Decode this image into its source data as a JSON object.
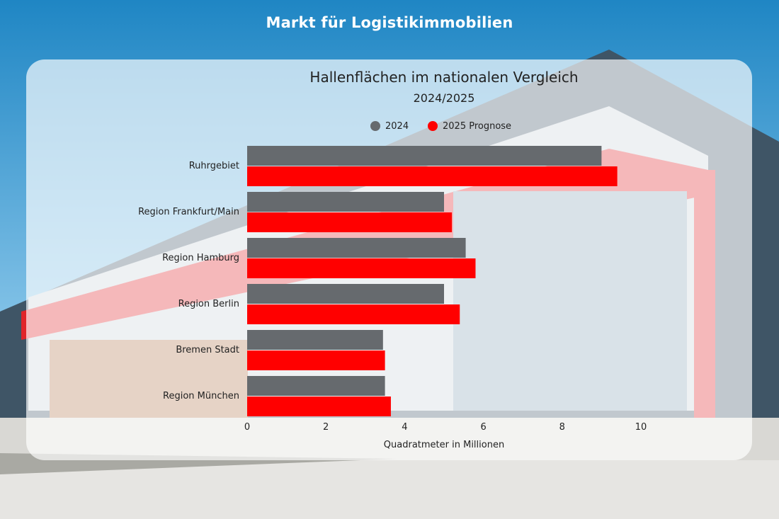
{
  "banner": {
    "title": "Markt für Logistikimmobilien"
  },
  "colors": {
    "series_2024": "#666a6e",
    "series_2025": "#ff0000"
  },
  "chart_data": {
    "type": "bar",
    "orientation": "horizontal",
    "title": "Hallenflächen im nationalen Vergleich",
    "subtitle": "2024/2025",
    "xlabel": "Quadratmeter in Millionen",
    "ylabel": "",
    "xlim": [
      0,
      11
    ],
    "xticks": [
      0,
      2,
      4,
      6,
      8,
      10
    ],
    "legend_position": "top",
    "grid": false,
    "categories": [
      "Ruhrgebiet",
      "Region Frankfurt/Main",
      "Region Hamburg",
      "Region Berlin",
      "Bremen Stadt",
      "Region München"
    ],
    "series": [
      {
        "name": "2024",
        "color": "#666a6e",
        "values": [
          9.0,
          5.0,
          5.55,
          5.0,
          3.45,
          3.5
        ]
      },
      {
        "name": "2025 Prognose",
        "color": "#ff0000",
        "values": [
          9.4,
          5.2,
          5.8,
          5.4,
          3.5,
          3.65
        ]
      }
    ]
  }
}
